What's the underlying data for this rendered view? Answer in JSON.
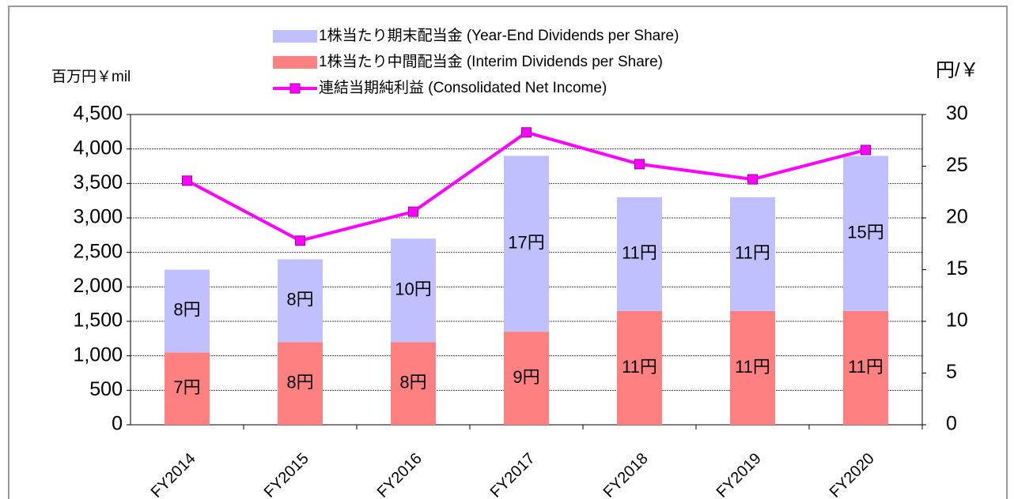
{
  "chart_data": {
    "type": "bar",
    "y_label": "百万円￥mil",
    "y2_label": "円/￥",
    "categories": [
      "FY2014",
      "FY2015",
      "FY2016",
      "FY2017",
      "FY2018",
      "FY2019",
      "FY2020"
    ],
    "series": [
      {
        "name": "1株当たり中間配当金 (Interim Dividends per Share)",
        "type": "bar",
        "axis": "y2",
        "color": "#ff8080",
        "values": [
          7,
          8,
          8,
          9,
          11,
          11,
          11
        ],
        "value_labels": [
          "7円",
          "8円",
          "8円",
          "9円",
          "11円",
          "11円",
          "11円"
        ]
      },
      {
        "name": "1株当たり期末配当金 (Year-End Dividends per Share)",
        "type": "bar",
        "axis": "y2",
        "color": "#c0c0ff",
        "values": [
          8,
          8,
          10,
          17,
          11,
          11,
          15
        ],
        "value_labels": [
          "8円",
          "8円",
          "10円",
          "17円",
          "11円",
          "11円",
          "15円"
        ]
      },
      {
        "name": "連結当期純利益 (Consolidated Net Income)",
        "type": "line",
        "axis": "y",
        "color": "#ff00ff",
        "values": [
          3540,
          2670,
          3090,
          4240,
          3780,
          3560,
          3985
        ]
      }
    ],
    "ylim": [
      0,
      4500
    ],
    "yticks": [
      0,
      500,
      {
        "value": 1000,
        "label": "1,000"
      },
      {
        "value": 1500,
        "label": "1,500"
      },
      {
        "value": 2000,
        "label": "2,000"
      },
      {
        "value": 2500,
        "label": "2,500"
      },
      {
        "value": 3000,
        "label": "3,000"
      },
      {
        "value": 3500,
        "label": "3,500"
      },
      {
        "value": 4000,
        "label": "4,000"
      },
      {
        "value": 4500,
        "label": "4,500"
      }
    ],
    "y2lim": [
      0,
      30
    ],
    "y2ticks": [
      0,
      5,
      10,
      15,
      20,
      25,
      30
    ],
    "grid": true,
    "legend": "top"
  }
}
